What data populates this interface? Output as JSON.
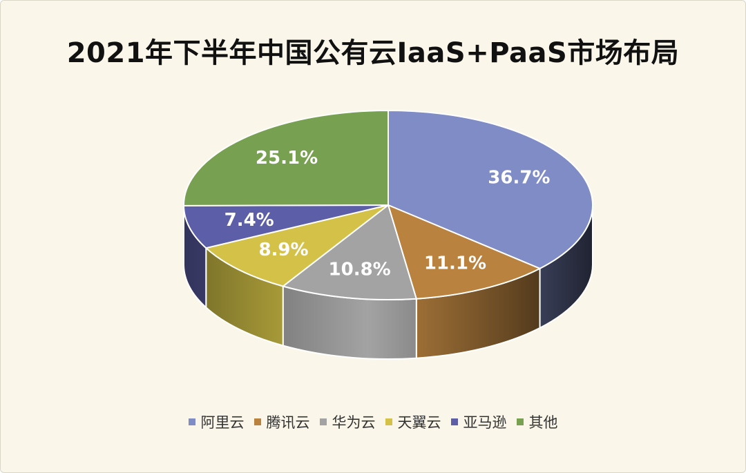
{
  "chart_data": {
    "type": "pie",
    "title": "2021年下半年中国公有云IaaS+PaaS市场布局",
    "categories": [
      "阿里云",
      "腾讯云",
      "华为云",
      "天翼云",
      "亚马逊",
      "其他"
    ],
    "values": [
      36.7,
      11.1,
      10.8,
      8.9,
      7.4,
      25.1
    ],
    "labels": [
      "36.7%",
      "11.1%",
      "10.8%",
      "8.9%",
      "7.4%",
      "25.1%"
    ],
    "colors": [
      "#7f8cc5",
      "#b9823f",
      "#a3a3a3",
      "#d3c247",
      "#5c5fa7",
      "#77a050"
    ],
    "legend_position": "bottom"
  }
}
